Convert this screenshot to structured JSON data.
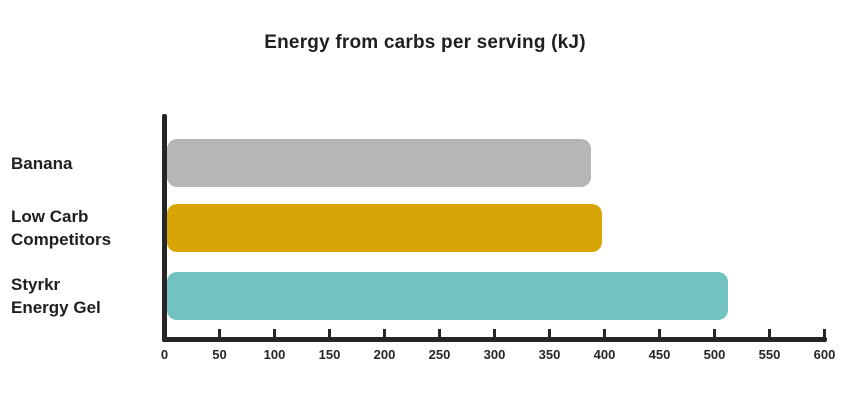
{
  "chart_data": {
    "type": "bar",
    "orientation": "horizontal",
    "title": "Energy from carbs per serving (kJ)",
    "categories": [
      "Banana",
      "Low Carb Competitors",
      "Styrkr Energy Gel"
    ],
    "category_label_lines": [
      [
        "Banana"
      ],
      [
        "Low Carb",
        "Competitors"
      ],
      [
        "Styrkr",
        "Energy Gel"
      ]
    ],
    "values": [
      385,
      395,
      510
    ],
    "bar_colors": [
      "#b5b6b7",
      "#d7a506",
      "#70c3c0"
    ],
    "xlabel": "",
    "ylabel": "",
    "xlim": [
      0,
      600
    ],
    "x_ticks": [
      0,
      50,
      100,
      150,
      200,
      250,
      300,
      350,
      400,
      450,
      500,
      550,
      600
    ],
    "grid": false,
    "legend": false,
    "axis_color": "#262626",
    "text_color": "#1f1f1f",
    "background_color": "#ffffff"
  }
}
